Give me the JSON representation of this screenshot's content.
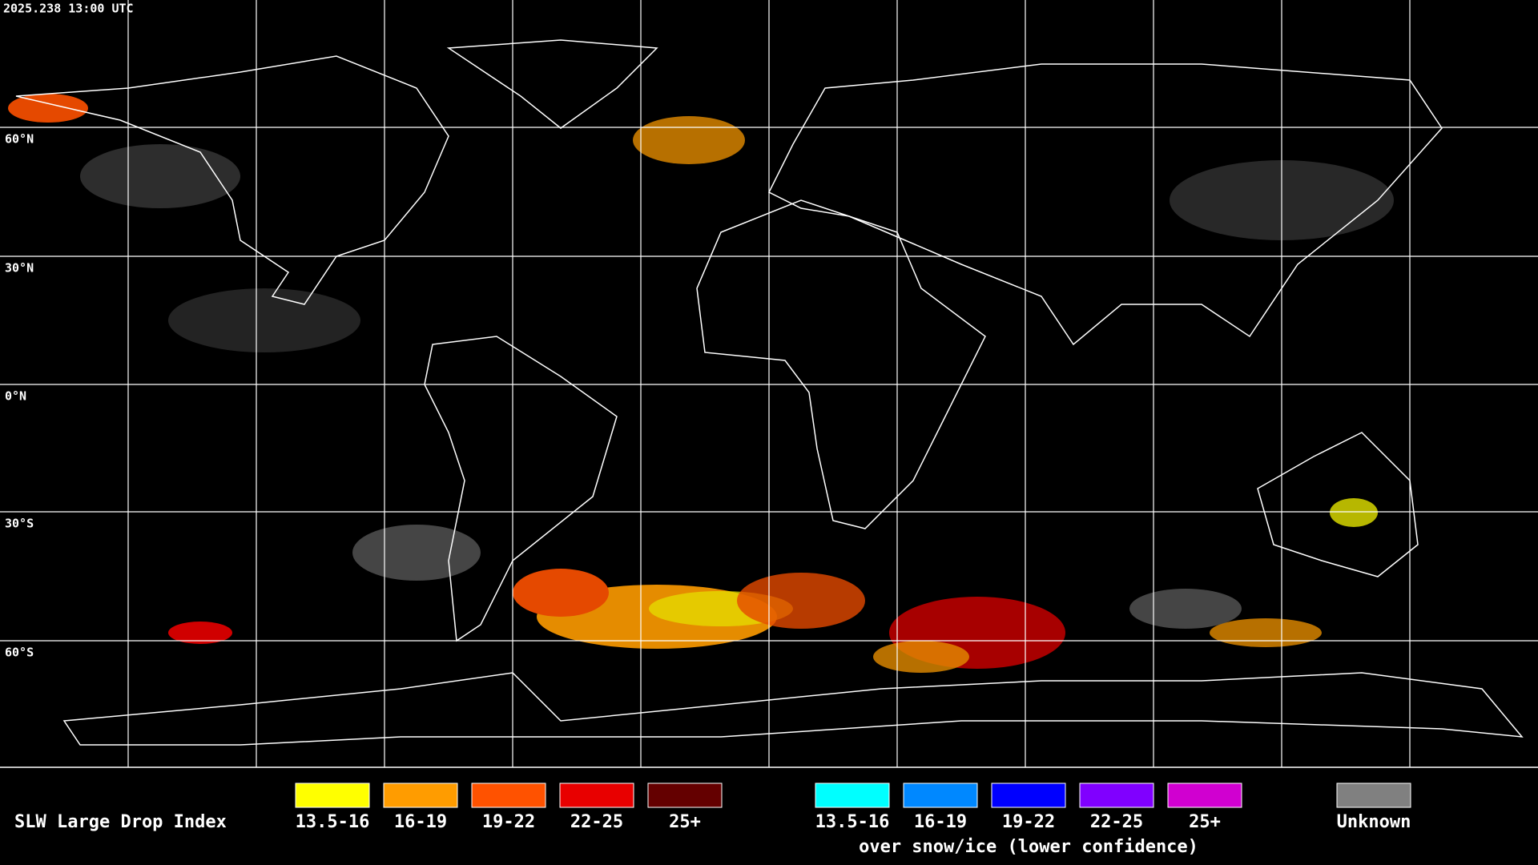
{
  "header": {
    "timestamp": "2025.238 13:00 UTC"
  },
  "map": {
    "latitude_labels": [
      "60°N",
      "30°N",
      "0°N",
      "30°S",
      "60°S"
    ]
  },
  "legend": {
    "title": "SLW Large Drop Index",
    "groups": [
      {
        "items": [
          {
            "label": "13.5-16",
            "color": "#ffff00"
          },
          {
            "label": "16-19",
            "color": "#ff9c00"
          },
          {
            "label": "19-22",
            "color": "#ff5200"
          },
          {
            "label": "22-25",
            "color": "#e80000"
          },
          {
            "label": "25+",
            "color": "#640000"
          }
        ]
      },
      {
        "items": [
          {
            "label": "13.5-16",
            "color": "#00ffff"
          },
          {
            "label": "16-19",
            "color": "#0088ff"
          },
          {
            "label": "19-22",
            "color": "#0000ff"
          },
          {
            "label": "22-25",
            "color": "#8000ff"
          },
          {
            "label": "25+",
            "color": "#d000d0"
          }
        ],
        "caption": "over snow/ice (lower confidence)"
      },
      {
        "items": [
          {
            "label": "Unknown",
            "color": "#808080"
          }
        ]
      }
    ]
  }
}
